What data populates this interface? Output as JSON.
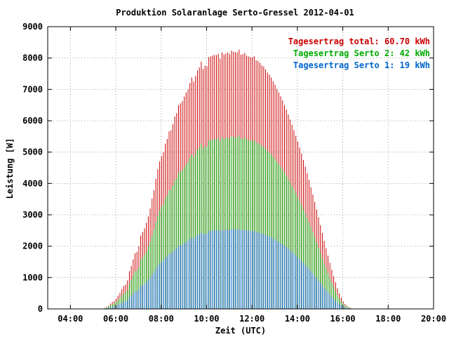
{
  "chart_data": {
    "type": "bar",
    "title": "Produktion Solaranlage Serto-Gressel 2012-04-01",
    "xlabel": "Zeit (UTC)",
    "ylabel": "Leistung [W]",
    "x_tick_labels": [
      "04:00",
      "06:00",
      "08:00",
      "10:00",
      "12:00",
      "14:00",
      "16:00",
      "18:00",
      "20:00"
    ],
    "y_tick_labels": [
      "0",
      "1000",
      "2000",
      "3000",
      "4000",
      "5000",
      "6000",
      "7000",
      "8000",
      "9000"
    ],
    "xlim_hours": [
      3,
      20
    ],
    "ylim": [
      0,
      9000
    ],
    "grid": true,
    "legend_position": "top-right",
    "x_hours": [
      5.0,
      5.083,
      5.167,
      5.25,
      5.333,
      5.417,
      5.5,
      5.583,
      5.667,
      5.75,
      5.833,
      5.917,
      6.0,
      6.083,
      6.167,
      6.25,
      6.333,
      6.417,
      6.5,
      6.583,
      6.667,
      6.75,
      6.833,
      6.917,
      7.0,
      7.083,
      7.167,
      7.25,
      7.333,
      7.417,
      7.5,
      7.583,
      7.667,
      7.75,
      7.833,
      7.917,
      8.0,
      8.083,
      8.167,
      8.25,
      8.333,
      8.417,
      8.5,
      8.583,
      8.667,
      8.75,
      8.833,
      8.917,
      9.0,
      9.083,
      9.167,
      9.25,
      9.333,
      9.417,
      9.5,
      9.583,
      9.667,
      9.75,
      9.833,
      9.917,
      10.0,
      10.083,
      10.167,
      10.25,
      10.333,
      10.417,
      10.5,
      10.583,
      10.667,
      10.75,
      10.833,
      10.917,
      11.0,
      11.083,
      11.167,
      11.25,
      11.333,
      11.417,
      11.5,
      11.583,
      11.667,
      11.75,
      11.833,
      11.917,
      12.0,
      12.083,
      12.167,
      12.25,
      12.333,
      12.417,
      12.5,
      12.583,
      12.667,
      12.75,
      12.833,
      12.917,
      13.0,
      13.083,
      13.167,
      13.25,
      13.333,
      13.417,
      13.5,
      13.583,
      13.667,
      13.75,
      13.833,
      13.917,
      14.0,
      14.083,
      14.167,
      14.25,
      14.333,
      14.417,
      14.5,
      14.583,
      14.667,
      14.75,
      14.833,
      14.917,
      15.0,
      15.083,
      15.167,
      15.25,
      15.333,
      15.417,
      15.5,
      15.583,
      15.667,
      15.75,
      15.833,
      15.917,
      16.0,
      16.083,
      16.167,
      16.25,
      16.333,
      16.417,
      16.5,
      16.583,
      16.667,
      16.75,
      16.833,
      16.917,
      17.0,
      17.083,
      17.167,
      17.25,
      17.333,
      17.417,
      17.5,
      17.583,
      17.667,
      17.75,
      17.833
    ],
    "series": [
      {
        "name": "Tagesertrag total: 60.70 kWh",
        "color": "#cc0000",
        "values": [
          0,
          0,
          0,
          0,
          0,
          10,
          30,
          60,
          100,
          170,
          220,
          250,
          330,
          420,
          510,
          640,
          730,
          780,
          910,
          1200,
          1370,
          1580,
          1770,
          1820,
          2000,
          2340,
          2450,
          2570,
          2750,
          2950,
          3200,
          3520,
          3780,
          4150,
          4450,
          4700,
          4870,
          5000,
          5270,
          5420,
          5660,
          5700,
          5890,
          6140,
          6240,
          6500,
          6550,
          6620,
          6770,
          6900,
          7000,
          7200,
          7380,
          7250,
          7430,
          7600,
          7700,
          7880,
          7650,
          7760,
          7740,
          8030,
          8050,
          8080,
          8100,
          8090,
          8130,
          7980,
          8180,
          8110,
          8140,
          8180,
          8120,
          8240,
          8200,
          8190,
          8180,
          8270,
          8110,
          8120,
          8160,
          8080,
          8050,
          8030,
          8020,
          8060,
          7930,
          7910,
          7850,
          7770,
          7730,
          7640,
          7540,
          7470,
          7380,
          7260,
          7150,
          7020,
          6900,
          6780,
          6650,
          6500,
          6360,
          6200,
          6040,
          5870,
          5700,
          5520,
          5340,
          5150,
          4960,
          4750,
          4540,
          4330,
          4110,
          3880,
          3650,
          3410,
          3170,
          2920,
          2670,
          2420,
          2170,
          1930,
          1700,
          1470,
          1250,
          1040,
          850,
          660,
          500,
          370,
          250,
          160,
          100,
          60,
          30,
          10,
          0,
          0,
          0,
          0,
          0,
          0,
          0,
          0,
          0,
          0,
          0,
          0,
          0,
          0,
          0,
          0
        ]
      },
      {
        "name": "Tagesertrag Serto 2: 42 kWh",
        "color": "#00aa00",
        "values": [
          0,
          0,
          0,
          0,
          0,
          10,
          20,
          40,
          70,
          120,
          150,
          170,
          220,
          280,
          340,
          430,
          490,
          520,
          610,
          800,
          920,
          1060,
          1190,
          1220,
          1340,
          1570,
          1640,
          1720,
          1840,
          1980,
          2140,
          2350,
          2530,
          2770,
          2970,
          3140,
          3250,
          3340,
          3520,
          3620,
          3780,
          3810,
          3940,
          4100,
          4170,
          4340,
          4380,
          4420,
          4520,
          4610,
          4680,
          4810,
          4930,
          4840,
          4960,
          5080,
          5150,
          5270,
          5110,
          5190,
          5170,
          5370,
          5380,
          5400,
          5420,
          5410,
          5440,
          5340,
          5470,
          5420,
          5440,
          5470,
          5430,
          5510,
          5480,
          5480,
          5470,
          5530,
          5420,
          5430,
          5460,
          5400,
          5380,
          5370,
          5360,
          5390,
          5300,
          5290,
          5250,
          5200,
          5170,
          5110,
          5040,
          4990,
          4930,
          4850,
          4780,
          4690,
          4610,
          4530,
          4450,
          4350,
          4250,
          4150,
          4040,
          3930,
          3810,
          3690,
          3570,
          3450,
          3320,
          3180,
          3040,
          2900,
          2750,
          2600,
          2440,
          2280,
          2120,
          1950,
          1790,
          1620,
          1450,
          1290,
          1140,
          980,
          840,
          700,
          570,
          440,
          330,
          250,
          170,
          110,
          70,
          40,
          20,
          10,
          0,
          0,
          0,
          0,
          0,
          0,
          0,
          0,
          0,
          0,
          0,
          0,
          0,
          0,
          0,
          0
        ]
      },
      {
        "name": "Tagesertrag Serto 1: 19 kWh",
        "color": "#0066cc",
        "values": [
          0,
          0,
          0,
          0,
          0,
          0,
          10,
          20,
          30,
          50,
          70,
          80,
          100,
          130,
          160,
          200,
          230,
          240,
          280,
          370,
          420,
          490,
          550,
          560,
          620,
          730,
          760,
          800,
          850,
          920,
          990,
          1090,
          1170,
          1280,
          1370,
          1450,
          1500,
          1540,
          1630,
          1670,
          1750,
          1760,
          1820,
          1900,
          1930,
          2010,
          2030,
          2050,
          2090,
          2130,
          2170,
          2230,
          2280,
          2240,
          2300,
          2350,
          2380,
          2440,
          2370,
          2400,
          2390,
          2480,
          2490,
          2500,
          2510,
          2500,
          2520,
          2470,
          2530,
          2510,
          2520,
          2530,
          2510,
          2550,
          2540,
          2530,
          2530,
          2560,
          2510,
          2510,
          2530,
          2500,
          2490,
          2480,
          2480,
          2490,
          2450,
          2450,
          2430,
          2400,
          2390,
          2360,
          2330,
          2310,
          2280,
          2240,
          2210,
          2170,
          2130,
          2100,
          2060,
          2010,
          1970,
          1920,
          1870,
          1820,
          1760,
          1710,
          1650,
          1590,
          1530,
          1470,
          1410,
          1340,
          1270,
          1200,
          1130,
          1050,
          980,
          900,
          830,
          750,
          670,
          600,
          530,
          450,
          390,
          320,
          260,
          210,
          150,
          120,
          80,
          50,
          30,
          20,
          10,
          0,
          0,
          0,
          0,
          0,
          0,
          0,
          0,
          0,
          0,
          0,
          0,
          0,
          0,
          0,
          0,
          0
        ]
      }
    ]
  }
}
